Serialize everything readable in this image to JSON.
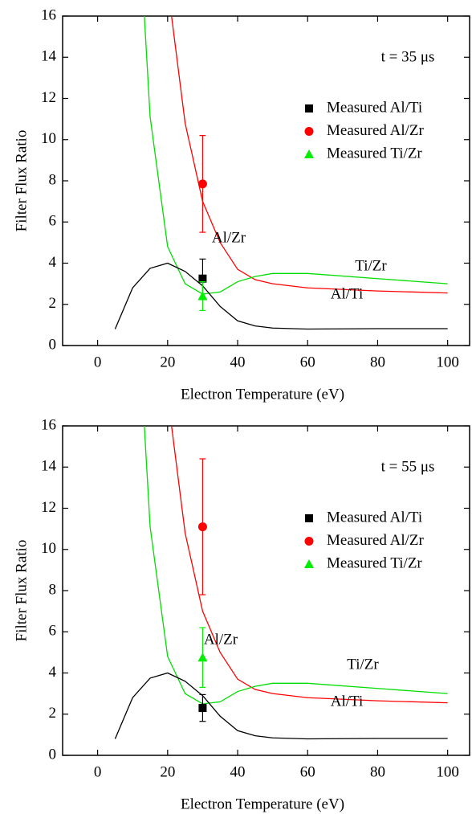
{
  "chart_data": [
    {
      "type": "line",
      "xlabel": "Electron Temperature (eV)",
      "ylabel": "Filter Flux Ratio",
      "annotation": "t = 35 μs",
      "xlim": [
        -10,
        106.5
      ],
      "ylim": [
        0,
        16
      ],
      "xticks": [
        0,
        20,
        40,
        60,
        80,
        100
      ],
      "yticks": [
        0,
        2,
        4,
        6,
        8,
        10,
        12,
        14,
        16
      ],
      "series": [
        {
          "label": "Al/Zr",
          "color": "#ff0000",
          "x": [
            20,
            25,
            30,
            35,
            40,
            45,
            50,
            60,
            80,
            100
          ],
          "values": [
            17.5,
            10.8,
            7.0,
            5.0,
            3.7,
            3.2,
            3.0,
            2.8,
            2.65,
            2.55
          ]
        },
        {
          "label": "Ti/Zr",
          "color": "#00dd00",
          "x": [
            12,
            15,
            20,
            25,
            30,
            35,
            40,
            45,
            50,
            60,
            80,
            100
          ],
          "values": [
            20,
            11.1,
            4.8,
            3.0,
            2.5,
            2.6,
            3.1,
            3.35,
            3.5,
            3.5,
            3.25,
            3.0
          ]
        },
        {
          "label": "Al/Ti",
          "color": "#000000",
          "x": [
            5,
            10,
            15,
            20,
            25,
            30,
            35,
            40,
            45,
            50,
            60,
            80,
            100
          ],
          "values": [
            0.8,
            2.8,
            3.75,
            4.0,
            3.6,
            2.9,
            1.9,
            1.2,
            0.95,
            0.85,
            0.8,
            0.82,
            0.82
          ]
        },
        {
          "name": "Measured Al/Ti",
          "color": "#000000",
          "marker": "square",
          "x": [
            30
          ],
          "values": [
            3.25
          ],
          "errors": [
            0.95
          ]
        },
        {
          "name": "Measured Al/Zr",
          "color": "#ff0000",
          "marker": "circle",
          "x": [
            30
          ],
          "values": [
            7.85
          ],
          "errors": [
            2.35
          ]
        },
        {
          "name": "Measured Ti/Zr",
          "color": "#00ee00",
          "marker": "triangle",
          "x": [
            30
          ],
          "values": [
            2.4
          ],
          "errors": [
            0.7
          ]
        }
      ]
    },
    {
      "type": "line",
      "xlabel": "Electron Temperature (eV)",
      "ylabel": "Filter Flux Ratio",
      "annotation": "t = 55 μs",
      "xlim": [
        -10,
        106.5
      ],
      "ylim": [
        0,
        16
      ],
      "xticks": [
        0,
        20,
        40,
        60,
        80,
        100
      ],
      "yticks": [
        0,
        2,
        4,
        6,
        8,
        10,
        12,
        14,
        16
      ],
      "series": [
        {
          "label": "Al/Zr",
          "color": "#ff0000",
          "x": [
            20,
            25,
            30,
            35,
            40,
            45,
            50,
            60,
            80,
            100
          ],
          "values": [
            17.5,
            10.8,
            7.0,
            5.0,
            3.7,
            3.2,
            3.0,
            2.8,
            2.65,
            2.55
          ]
        },
        {
          "label": "Ti/Zr",
          "color": "#00dd00",
          "x": [
            12,
            15,
            20,
            25,
            30,
            35,
            40,
            45,
            50,
            60,
            80,
            100
          ],
          "values": [
            20,
            11.1,
            4.8,
            3.0,
            2.5,
            2.6,
            3.1,
            3.35,
            3.5,
            3.5,
            3.25,
            3.0
          ]
        },
        {
          "label": "Al/Ti",
          "color": "#000000",
          "x": [
            5,
            10,
            15,
            20,
            25,
            30,
            35,
            40,
            45,
            50,
            60,
            80,
            100
          ],
          "values": [
            0.8,
            2.8,
            3.75,
            4.0,
            3.6,
            2.9,
            1.9,
            1.2,
            0.95,
            0.85,
            0.8,
            0.82,
            0.82
          ]
        },
        {
          "name": "Measured Al/Ti",
          "color": "#000000",
          "marker": "square",
          "x": [
            30
          ],
          "values": [
            2.3
          ],
          "errors": [
            0.65
          ]
        },
        {
          "name": "Measured Al/Zr",
          "color": "#ff0000",
          "marker": "circle",
          "x": [
            30
          ],
          "values": [
            11.1
          ],
          "errors": [
            3.3
          ]
        },
        {
          "name": "Measured Ti/Zr",
          "color": "#00ee00",
          "marker": "triangle",
          "x": [
            30
          ],
          "values": [
            4.75
          ],
          "errors": [
            1.45
          ]
        }
      ]
    }
  ]
}
